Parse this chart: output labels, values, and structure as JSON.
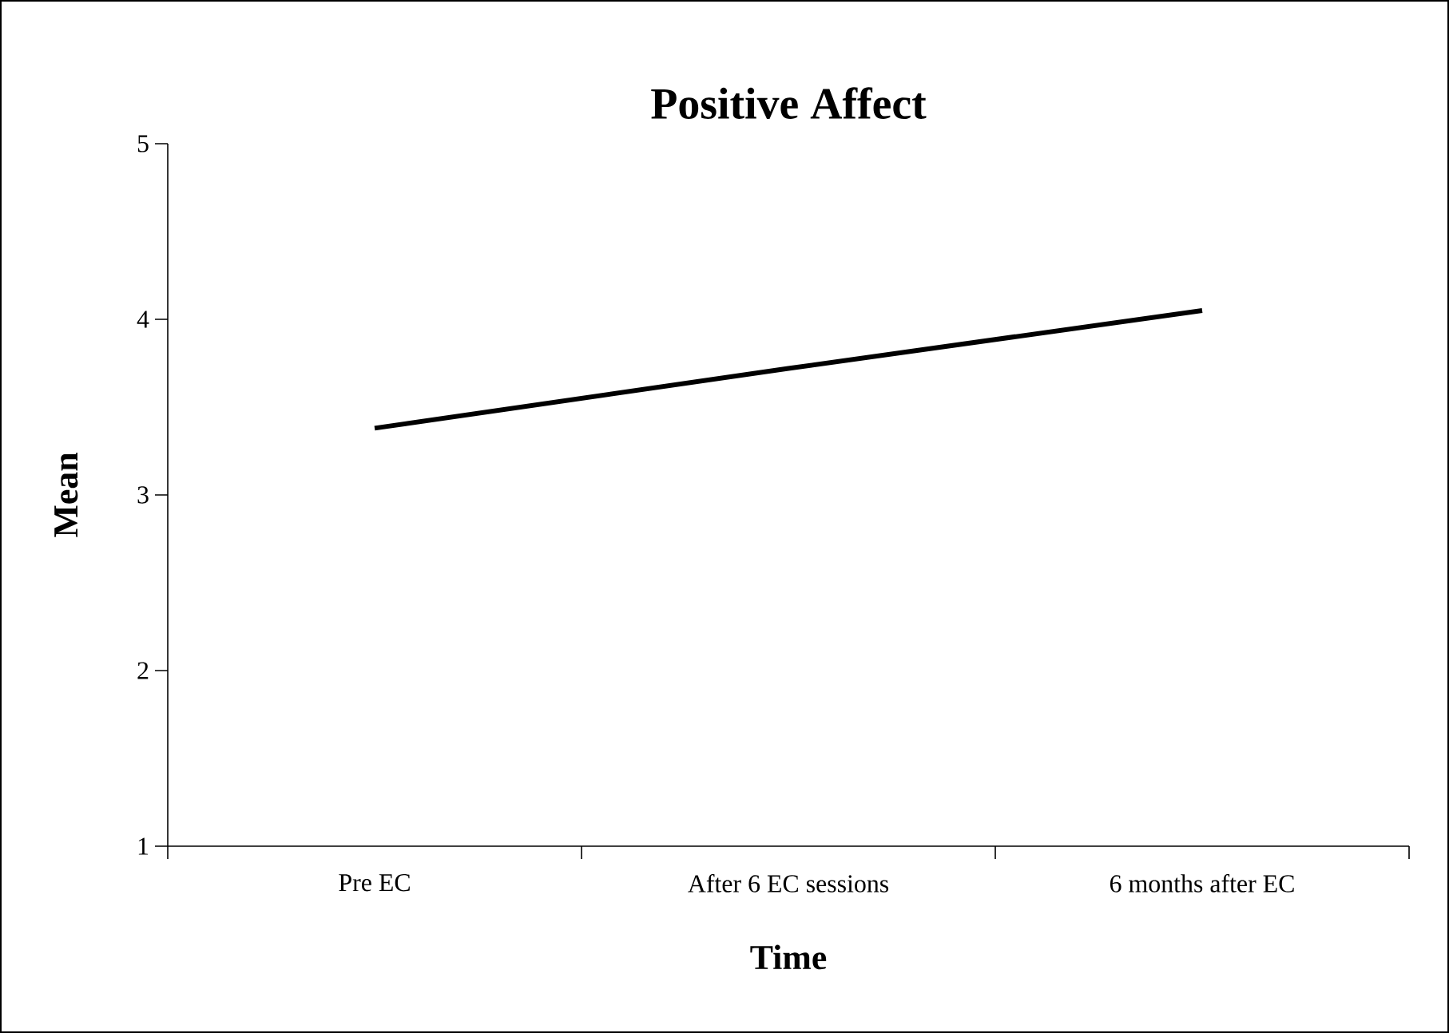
{
  "chart_data": {
    "type": "line",
    "title": "Positive Affect",
    "xlabel": "Time",
    "ylabel": "Mean",
    "categories": [
      "Pre EC",
      "After 6 EC sessions",
      "6 months after EC"
    ],
    "series": [
      {
        "color": "#000000",
        "values": [
          3.38,
          3.72,
          4.05
        ]
      }
    ],
    "ylim": [
      1,
      5
    ],
    "yticks": [
      1,
      2,
      3,
      4,
      5
    ],
    "grid": false,
    "marker": "none",
    "line_style": "solid"
  }
}
